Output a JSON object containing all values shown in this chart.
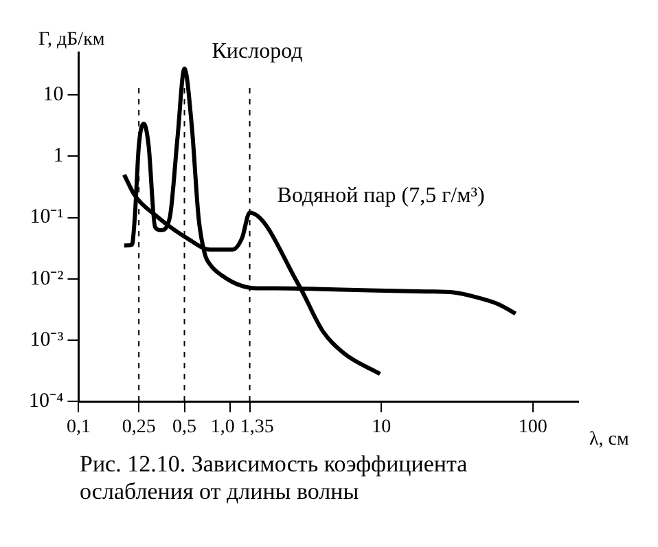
{
  "chart_data": {
    "type": "line",
    "xlabel": "λ, см",
    "ylabel": "Г, дБ/км",
    "annotations": [
      "Рис. 12.10. Зависимость коэффициента ослабления от длины волны"
    ],
    "log": "xy",
    "grid": false,
    "legend": false,
    "marker": "none",
    "line_style": "solid",
    "xlim": [
      0.1,
      200
    ],
    "ylim": [
      0.0001,
      50
    ],
    "xticks": [
      {
        "value": 0.1,
        "label": "0,1"
      },
      {
        "value": 0.25,
        "label": "0,25"
      },
      {
        "value": 0.5,
        "label": "0,5"
      },
      {
        "value": 1,
        "label": "1,0"
      },
      {
        "value": 1.35,
        "label": "1,35"
      },
      10,
      100
    ],
    "yticks": [
      {
        "value": 0.0001,
        "label": "10⁻⁴"
      },
      {
        "value": 0.001,
        "label": "10⁻³"
      },
      {
        "value": 0.01,
        "label": "10⁻²"
      },
      {
        "value": 0.1,
        "label": "10⁻¹"
      },
      1,
      10
    ],
    "ref_lines": [
      {
        "axis": "x",
        "value": 0.25,
        "line_style": "dashed",
        "color": "#000000"
      },
      {
        "axis": "x",
        "value": 0.5,
        "line_style": "dashed",
        "color": "#000000"
      },
      {
        "axis": "x",
        "value": 1.35,
        "line_style": "dashed",
        "color": "#000000"
      }
    ],
    "series": [
      {
        "name": "Кислород",
        "color": "#000000",
        "x": [
          0.2,
          0.225,
          0.235,
          0.25,
          0.27,
          0.29,
          0.32,
          0.35,
          0.4,
          0.45,
          0.5,
          0.56,
          0.62,
          0.68,
          0.74,
          0.9,
          1.14,
          1.5,
          2,
          4,
          8.3,
          20,
          30,
          45,
          60,
          77
        ],
        "values": [
          0.035,
          0.036,
          0.1,
          1.5,
          3.4,
          1.5,
          0.07,
          0.062,
          0.1,
          2,
          27,
          3,
          0.1,
          0.026,
          0.017,
          0.011,
          0.008,
          0.007,
          0.007,
          0.0068,
          0.0065,
          0.0062,
          0.006,
          0.0048,
          0.0038,
          0.0027
        ]
      },
      {
        "name": "Водяной пар (7,5 г/м³)",
        "color": "#000000",
        "x": [
          0.2,
          0.235,
          0.32,
          0.52,
          0.74,
          1.04,
          1.2,
          1.35,
          2.84,
          4.1,
          5.7,
          9.8
        ],
        "values": [
          0.5,
          0.23,
          0.11,
          0.046,
          0.03,
          0.03,
          0.046,
          0.12,
          0.008,
          0.0014,
          0.0006,
          0.00028
        ]
      }
    ]
  }
}
